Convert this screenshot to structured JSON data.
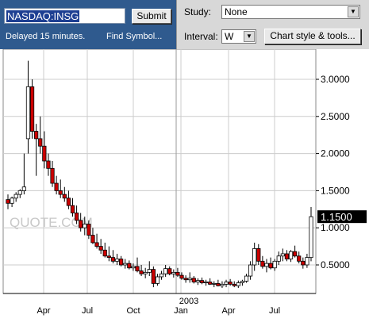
{
  "toolbar": {
    "symbol_value": "NASDAQ:INSG",
    "submit_label": "Submit",
    "delayed_text": "Delayed 15 minutes.",
    "find_symbol_label": "Find Symbol...",
    "study_label": "Study:",
    "study_value": "None",
    "interval_label": "Interval:",
    "interval_value": "W",
    "chart_style_label": "Chart style & tools..."
  },
  "watermark": "QUOTE.COM",
  "colors": {
    "up": "#ffffff",
    "down": "#cc0000",
    "grid": "#cccccc",
    "toolbar_blue": "#2f5a8e",
    "price_box": "#000000"
  },
  "chart_data": {
    "type": "candlestick",
    "title": "",
    "xlabel": "",
    "ylabel": "",
    "ylim": [
      0.1,
      3.35
    ],
    "y_ticks": [
      0.5,
      1.0,
      1.5,
      2.0,
      2.5,
      3.0
    ],
    "y_tick_labels": [
      "0.5000",
      "1.0000",
      "1.5000",
      "2.0000",
      "2.5000",
      "3.0000"
    ],
    "x_tick_labels": [
      "Apr",
      "Jul",
      "Oct",
      "Jan",
      "Apr",
      "Jul"
    ],
    "year_label": "2003",
    "grid": true,
    "last_price_label": "1.1500",
    "candles": [
      [
        1.38,
        1.45,
        1.25,
        1.33
      ],
      [
        1.33,
        1.42,
        1.28,
        1.4
      ],
      [
        1.4,
        1.48,
        1.35,
        1.45
      ],
      [
        1.45,
        1.52,
        1.4,
        1.5
      ],
      [
        1.5,
        2.0,
        1.45,
        1.55
      ],
      [
        2.2,
        3.25,
        2.0,
        2.9
      ],
      [
        2.9,
        3.0,
        2.2,
        2.3
      ],
      [
        2.3,
        2.4,
        1.7,
        2.2
      ],
      [
        2.2,
        2.5,
        2.0,
        2.1
      ],
      [
        2.1,
        2.3,
        1.8,
        1.9
      ],
      [
        1.9,
        2.0,
        1.7,
        1.8
      ],
      [
        1.8,
        1.9,
        1.55,
        1.6
      ],
      [
        1.6,
        1.7,
        1.45,
        1.5
      ],
      [
        1.5,
        1.65,
        1.4,
        1.45
      ],
      [
        1.45,
        1.55,
        1.35,
        1.4
      ],
      [
        1.4,
        1.5,
        1.25,
        1.3
      ],
      [
        1.3,
        1.4,
        1.15,
        1.2
      ],
      [
        1.2,
        1.3,
        1.05,
        1.1
      ],
      [
        1.1,
        1.2,
        0.95,
        1.0
      ],
      [
        1.0,
        1.15,
        0.9,
        1.05
      ],
      [
        1.05,
        1.1,
        0.85,
        0.9
      ],
      [
        0.9,
        1.0,
        0.78,
        0.8
      ],
      [
        0.8,
        0.92,
        0.72,
        0.75
      ],
      [
        0.75,
        0.85,
        0.65,
        0.7
      ],
      [
        0.7,
        0.8,
        0.6,
        0.62
      ],
      [
        0.62,
        0.75,
        0.55,
        0.6
      ],
      [
        0.6,
        0.7,
        0.52,
        0.55
      ],
      [
        0.55,
        0.65,
        0.5,
        0.58
      ],
      [
        0.58,
        0.62,
        0.48,
        0.5
      ],
      [
        0.5,
        0.58,
        0.45,
        0.52
      ],
      [
        0.52,
        0.56,
        0.44,
        0.46
      ],
      [
        0.46,
        0.52,
        0.42,
        0.48
      ],
      [
        0.48,
        0.6,
        0.4,
        0.42
      ],
      [
        0.42,
        0.5,
        0.35,
        0.38
      ],
      [
        0.38,
        0.46,
        0.32,
        0.4
      ],
      [
        0.4,
        0.55,
        0.35,
        0.44
      ],
      [
        0.44,
        0.48,
        0.2,
        0.25
      ],
      [
        0.25,
        0.38,
        0.22,
        0.34
      ],
      [
        0.34,
        0.42,
        0.3,
        0.38
      ],
      [
        0.38,
        0.5,
        0.34,
        0.45
      ],
      [
        0.45,
        0.48,
        0.36,
        0.38
      ],
      [
        0.38,
        0.44,
        0.33,
        0.4
      ],
      [
        0.4,
        0.46,
        0.34,
        0.36
      ],
      [
        0.36,
        0.4,
        0.3,
        0.32
      ],
      [
        0.32,
        0.36,
        0.26,
        0.3
      ],
      [
        0.3,
        0.4,
        0.26,
        0.32
      ],
      [
        0.32,
        0.35,
        0.25,
        0.27
      ],
      [
        0.27,
        0.32,
        0.23,
        0.29
      ],
      [
        0.29,
        0.33,
        0.24,
        0.26
      ],
      [
        0.26,
        0.3,
        0.22,
        0.27
      ],
      [
        0.27,
        0.32,
        0.23,
        0.24
      ],
      [
        0.24,
        0.28,
        0.2,
        0.25
      ],
      [
        0.25,
        0.3,
        0.21,
        0.22
      ],
      [
        0.22,
        0.28,
        0.19,
        0.24
      ],
      [
        0.24,
        0.3,
        0.2,
        0.27
      ],
      [
        0.27,
        0.31,
        0.22,
        0.24
      ],
      [
        0.24,
        0.28,
        0.2,
        0.22
      ],
      [
        0.22,
        0.29,
        0.19,
        0.26
      ],
      [
        0.26,
        0.3,
        0.22,
        0.28
      ],
      [
        0.28,
        0.38,
        0.26,
        0.35
      ],
      [
        0.35,
        0.55,
        0.3,
        0.5
      ],
      [
        0.5,
        0.8,
        0.42,
        0.72
      ],
      [
        0.72,
        0.78,
        0.5,
        0.55
      ],
      [
        0.55,
        0.62,
        0.45,
        0.48
      ],
      [
        0.48,
        0.58,
        0.4,
        0.52
      ],
      [
        0.52,
        0.6,
        0.44,
        0.46
      ],
      [
        0.46,
        0.58,
        0.42,
        0.55
      ],
      [
        0.55,
        0.68,
        0.5,
        0.62
      ],
      [
        0.62,
        0.72,
        0.55,
        0.65
      ],
      [
        0.65,
        0.7,
        0.55,
        0.58
      ],
      [
        0.58,
        0.7,
        0.54,
        0.68
      ],
      [
        0.68,
        0.76,
        0.6,
        0.62
      ],
      [
        0.62,
        0.68,
        0.52,
        0.55
      ],
      [
        0.55,
        0.6,
        0.45,
        0.5
      ],
      [
        0.5,
        0.65,
        0.46,
        0.6
      ],
      [
        0.6,
        1.28,
        0.55,
        1.15
      ]
    ]
  }
}
